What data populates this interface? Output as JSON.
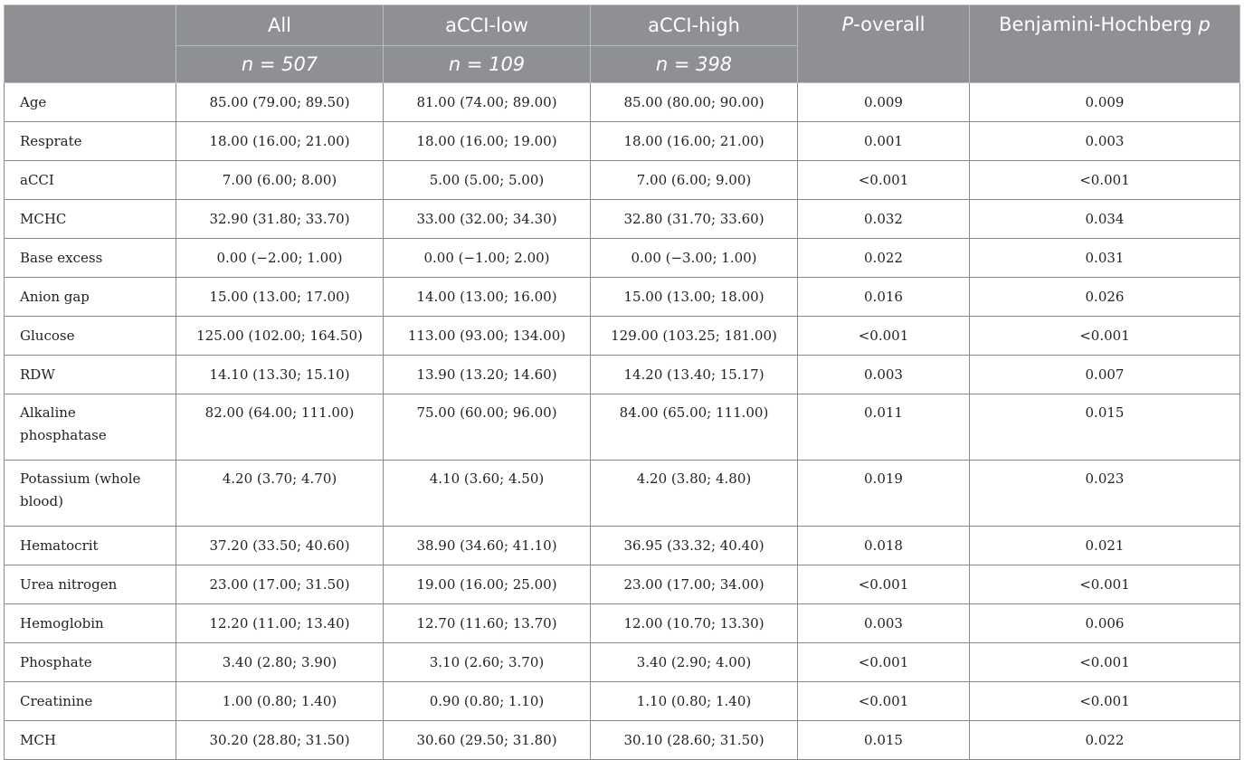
{
  "header": {
    "col_all": "All",
    "col_low": "aCCI-low",
    "col_high": "aCCI-high",
    "col_poverall_italic": "P",
    "col_poverall_rest": "-overall",
    "col_bh_text": "Benjamini-Hochberg ",
    "col_bh_italic": "p",
    "n_all": "n = 507",
    "n_low": "n = 109",
    "n_high": "n = 398"
  },
  "rows": [
    {
      "label": "Age",
      "all": "85.00 (79.00; 89.50)",
      "low": "81.00 (74.00; 89.00)",
      "high": "85.00 (80.00; 90.00)",
      "p": "0.009",
      "bh": "0.009"
    },
    {
      "label": "Resprate",
      "all": "18.00 (16.00; 21.00)",
      "low": "18.00 (16.00; 19.00)",
      "high": "18.00 (16.00; 21.00)",
      "p": "0.001",
      "bh": "0.003"
    },
    {
      "label": "aCCI",
      "all": "7.00 (6.00; 8.00)",
      "low": "5.00 (5.00; 5.00)",
      "high": "7.00 (6.00; 9.00)",
      "p": "<0.001",
      "bh": "<0.001"
    },
    {
      "label": "MCHC",
      "all": "32.90 (31.80; 33.70)",
      "low": "33.00 (32.00; 34.30)",
      "high": "32.80 (31.70; 33.60)",
      "p": "0.032",
      "bh": "0.034"
    },
    {
      "label": "Base excess",
      "all": "0.00 (−2.00; 1.00)",
      "low": "0.00 (−1.00; 2.00)",
      "high": "0.00 (−3.00; 1.00)",
      "p": "0.022",
      "bh": "0.031"
    },
    {
      "label": "Anion gap",
      "all": "15.00 (13.00; 17.00)",
      "low": "14.00 (13.00; 16.00)",
      "high": "15.00 (13.00; 18.00)",
      "p": "0.016",
      "bh": "0.026"
    },
    {
      "label": "Glucose",
      "all": "125.00 (102.00; 164.50)",
      "low": "113.00 (93.00; 134.00)",
      "high": "129.00 (103.25; 181.00)",
      "p": "<0.001",
      "bh": "<0.001"
    },
    {
      "label": "RDW",
      "all": "14.10 (13.30; 15.10)",
      "low": "13.90 (13.20; 14.60)",
      "high": "14.20 (13.40; 15.17)",
      "p": "0.003",
      "bh": "0.007"
    },
    {
      "label": "Alkaline phosphatase",
      "all": "82.00 (64.00; 111.00)",
      "low": "75.00 (60.00; 96.00)",
      "high": "84.00 (65.00; 111.00)",
      "p": "0.011",
      "bh": "0.015",
      "tall": true
    },
    {
      "label": "Potassium (whole blood)",
      "all": "4.20 (3.70; 4.70)",
      "low": "4.10 (3.60; 4.50)",
      "high": "4.20 (3.80; 4.80)",
      "p": "0.019",
      "bh": "0.023",
      "tall": true
    },
    {
      "label": "Hematocrit",
      "all": "37.20 (33.50; 40.60)",
      "low": "38.90 (34.60; 41.10)",
      "high": "36.95 (33.32; 40.40)",
      "p": "0.018",
      "bh": "0.021"
    },
    {
      "label": "Urea nitrogen",
      "all": "23.00 (17.00; 31.50)",
      "low": "19.00 (16.00; 25.00)",
      "high": "23.00 (17.00; 34.00)",
      "p": "<0.001",
      "bh": "<0.001"
    },
    {
      "label": "Hemoglobin",
      "all": "12.20 (11.00; 13.40)",
      "low": "12.70 (11.60; 13.70)",
      "high": "12.00 (10.70; 13.30)",
      "p": "0.003",
      "bh": "0.006"
    },
    {
      "label": "Phosphate",
      "all": "3.40 (2.80; 3.90)",
      "low": "3.10 (2.60; 3.70)",
      "high": "3.40 (2.90; 4.00)",
      "p": "<0.001",
      "bh": "<0.001"
    },
    {
      "label": "Creatinine",
      "all": "1.00 (0.80; 1.40)",
      "low": "0.90 (0.80; 1.10)",
      "high": "1.10 (0.80; 1.40)",
      "p": "<0.001",
      "bh": "<0.001"
    },
    {
      "label": "MCH",
      "all": "30.20 (28.80; 31.50)",
      "low": "30.60 (29.50; 31.80)",
      "high": "30.10 (28.60; 31.50)",
      "p": "0.015",
      "bh": "0.022"
    }
  ],
  "colors": {
    "header_bg": "#8e9093",
    "header_text": "#ffffff",
    "grid": "#8a8a8a"
  }
}
